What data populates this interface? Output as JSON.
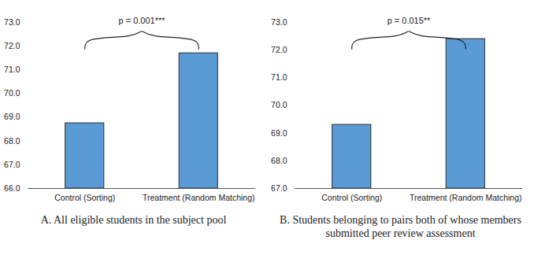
{
  "chart_data": [
    {
      "type": "bar",
      "categories": [
        "Control (Sorting)",
        "Treatment (Random Matching)"
      ],
      "values": [
        68.75,
        71.7
      ],
      "color": "#5b9bd5",
      "ylim": [
        66,
        73
      ],
      "yticks": [
        66,
        67,
        68,
        69,
        70,
        71,
        72,
        73
      ],
      "grid": false,
      "annotations": [
        "p = 0.001***"
      ],
      "caption": "A. All eligible students in the subject pool"
    },
    {
      "type": "bar",
      "categories": [
        "Control (Sorting)",
        "Treatment (Random Matching)"
      ],
      "values": [
        69.3,
        72.4
      ],
      "color": "#5b9bd5",
      "ylim": [
        67,
        73
      ],
      "yticks": [
        67,
        68,
        69,
        70,
        71,
        72,
        73
      ],
      "grid": false,
      "annotations": [
        "p = 0.015**"
      ],
      "caption": "B. Students belonging to pairs both of whose members submitted peer review assessment"
    }
  ]
}
